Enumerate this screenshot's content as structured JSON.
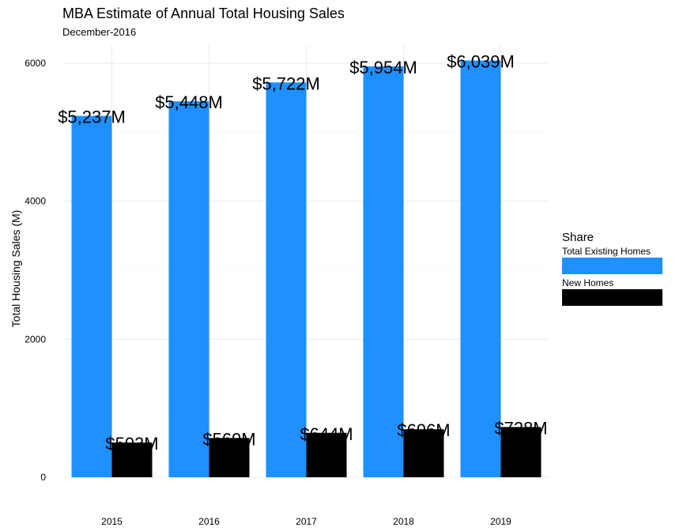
{
  "chart_data": {
    "type": "bar",
    "title": "MBA Estimate of Annual Total Housing Sales",
    "subtitle": "December-2016",
    "xlabel": "",
    "ylabel": "Total Housing Sales (M)",
    "categories": [
      "2015",
      "2016",
      "2017",
      "2018",
      "2019"
    ],
    "ylim": [
      0,
      6200
    ],
    "yticks": [
      0,
      2000,
      4000,
      6000
    ],
    "grid": true,
    "legend": {
      "title": "Share",
      "position": "right"
    },
    "series": [
      {
        "name": "Total Existing Homes",
        "color": "#1e90ff",
        "values": [
          5237,
          5448,
          5722,
          5954,
          6039
        ],
        "labels": [
          "$5,237M",
          "$5,448M",
          "$5,722M",
          "$5,954M",
          "$6,039M"
        ]
      },
      {
        "name": "New Homes",
        "color": "#000000",
        "values": [
          503,
          569,
          644,
          696,
          728
        ],
        "labels": [
          "$503M",
          "$569M",
          "$644M",
          "$696M",
          "$728M"
        ]
      }
    ]
  }
}
